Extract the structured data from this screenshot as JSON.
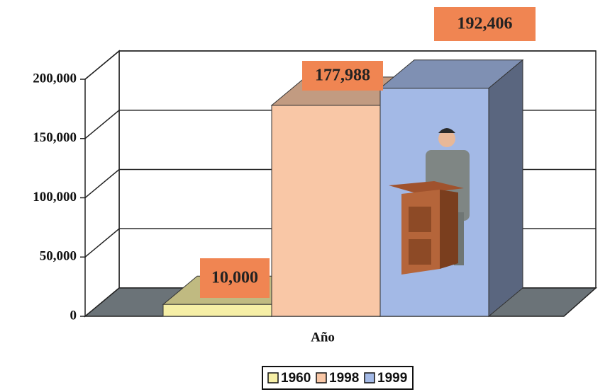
{
  "chart_data": {
    "type": "bar",
    "x_label": "Año",
    "categories": [
      null
    ],
    "series": [
      {
        "name": "1960",
        "color": "#f6efa6",
        "values": [
          10000
        ],
        "value_labels": [
          "10,000"
        ]
      },
      {
        "name": "1998",
        "color": "#f9c7a6",
        "values": [
          177988
        ],
        "value_labels": [
          "177,988"
        ]
      },
      {
        "name": "1999",
        "color": "#a3b9e6",
        "values": [
          192406
        ],
        "value_labels": [
          "192,406"
        ]
      }
    ],
    "ylim": [
      0,
      200000
    ],
    "yticks": [
      0,
      {
        "value": 50000,
        "label": "50,000"
      },
      {
        "value": 100000,
        "label": "100,000"
      },
      {
        "value": 150000,
        "label": "150,000"
      },
      {
        "value": 200000,
        "label": "200,000"
      }
    ],
    "grid": true
  }
}
